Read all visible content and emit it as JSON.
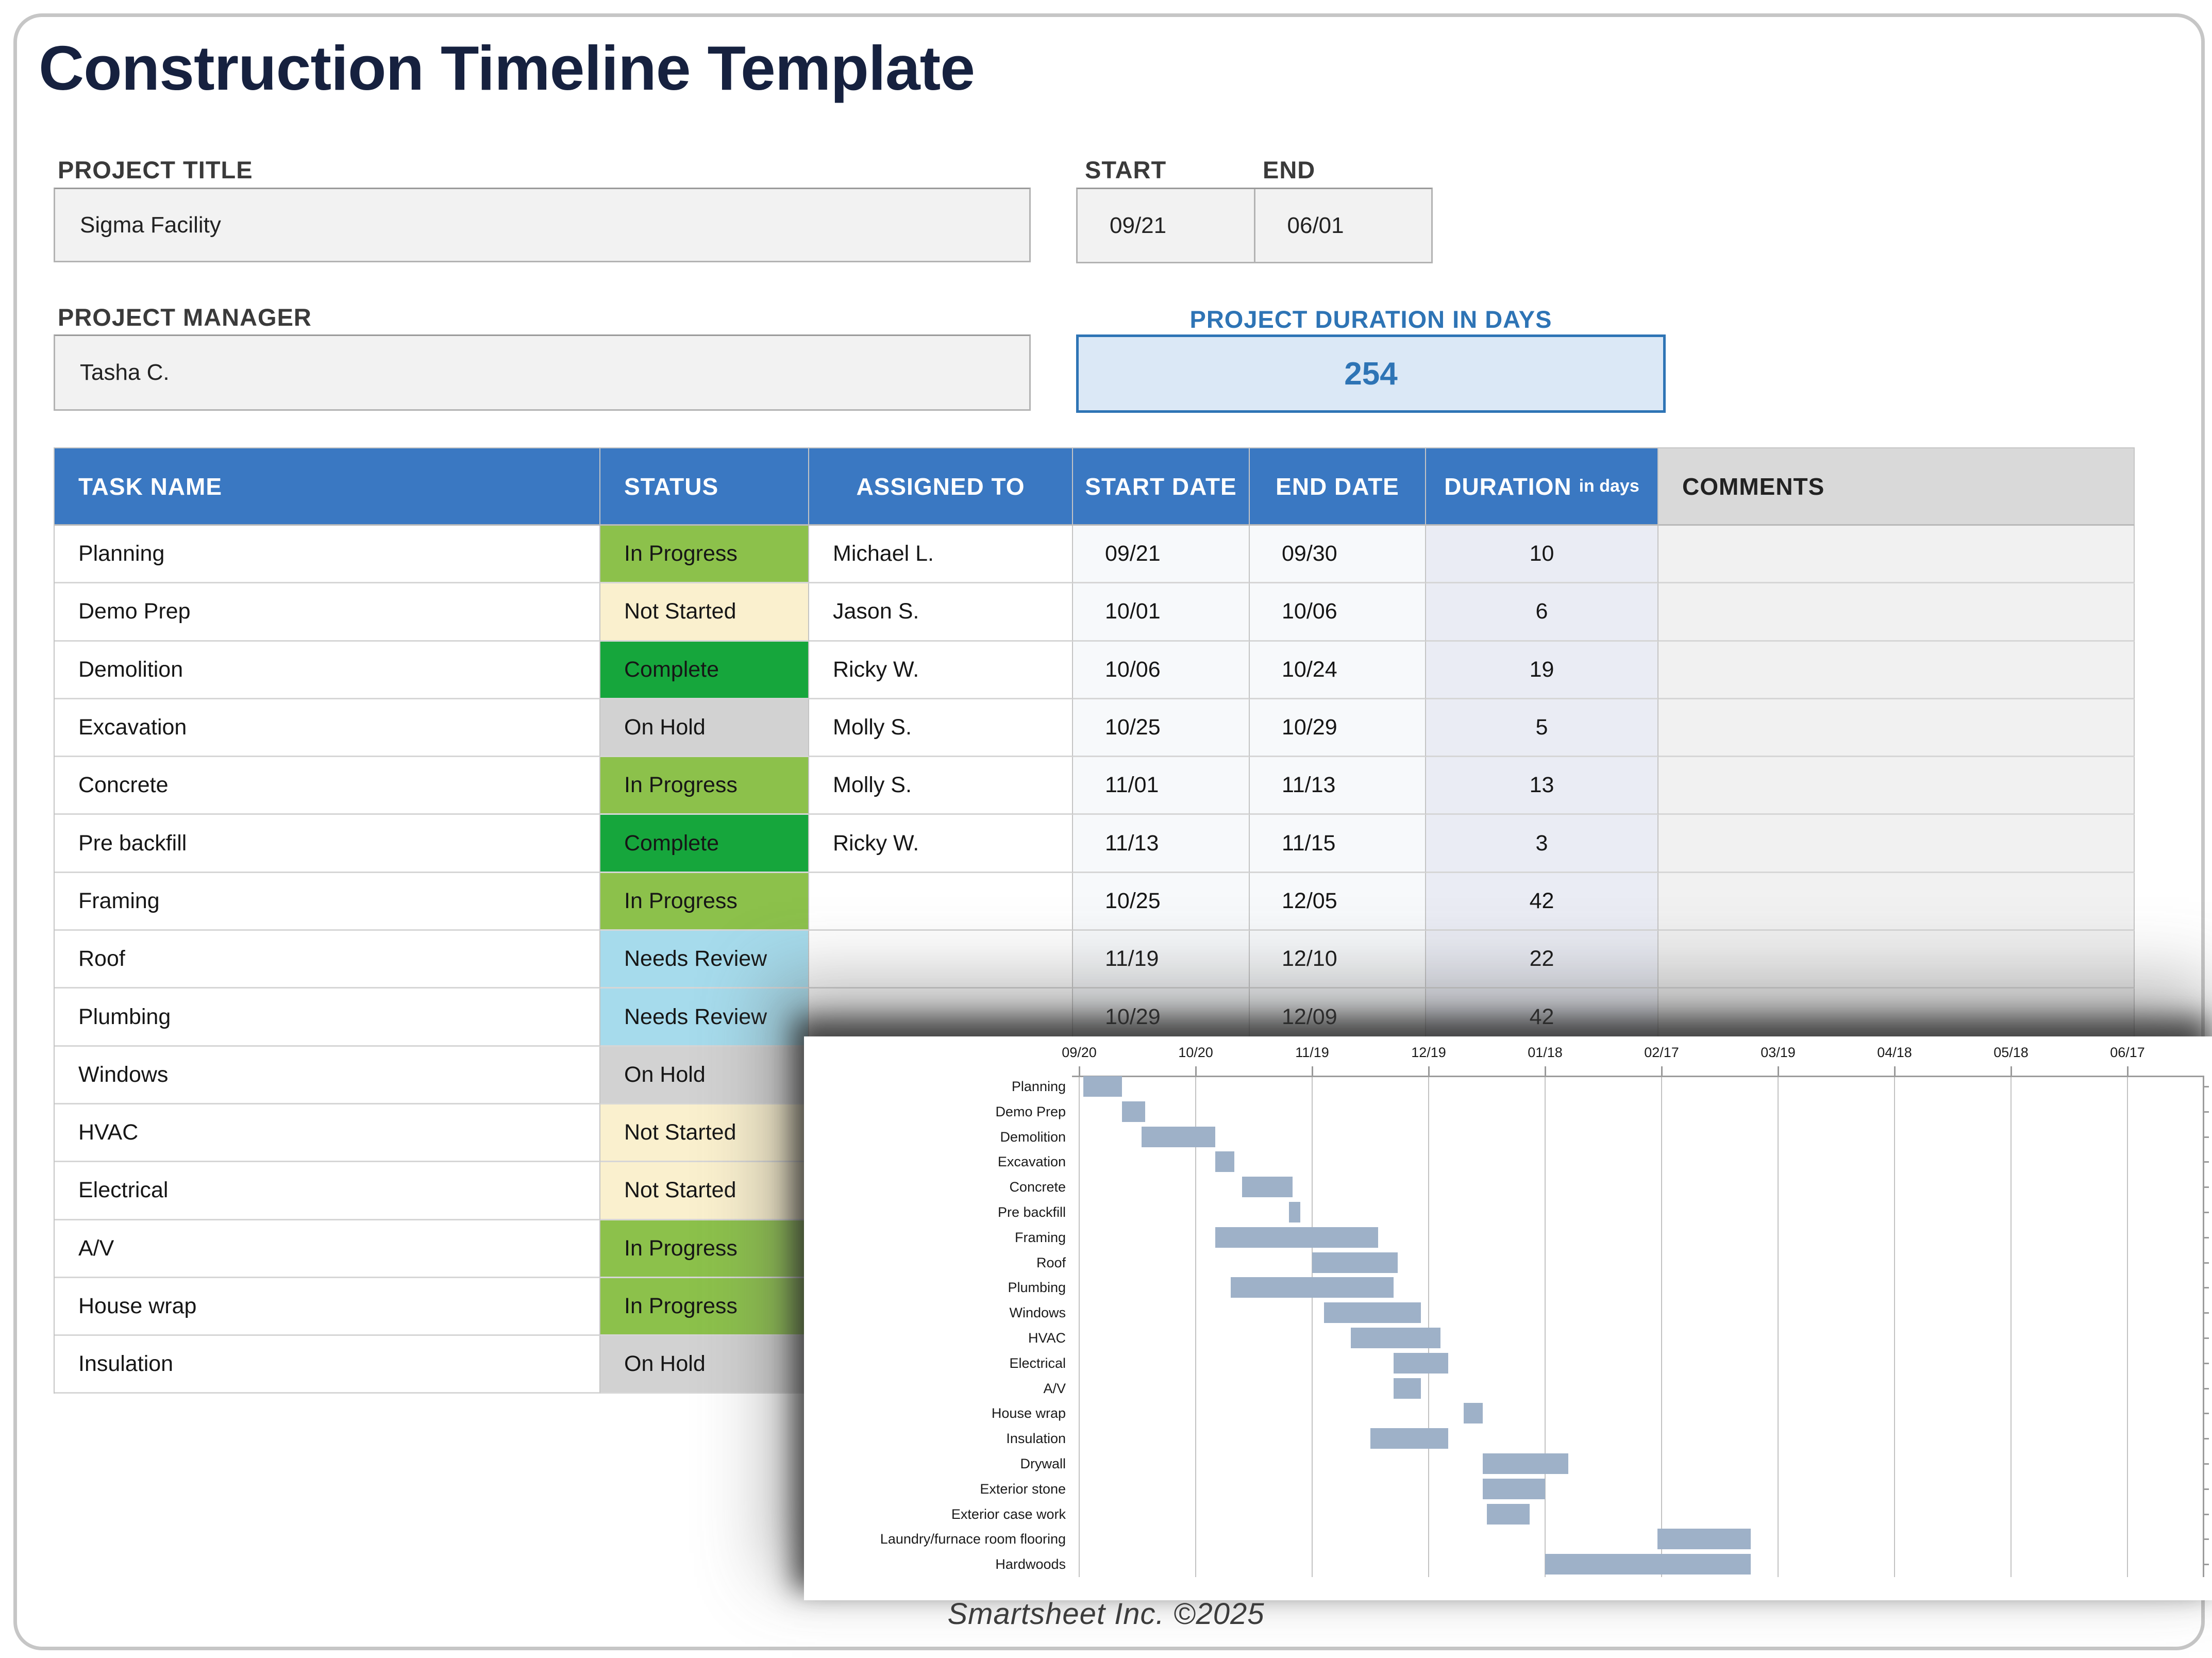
{
  "header": {
    "title": "Construction Timeline Template"
  },
  "project": {
    "title_label": "PROJECT TITLE",
    "title_value": "Sigma Facility",
    "manager_label": "PROJECT MANAGER",
    "manager_value": "Tasha C.",
    "start_label": "START",
    "start_value": "09/21",
    "end_label": "END",
    "end_value": "06/01",
    "duration_label": "PROJECT DURATION IN DAYS",
    "duration_value": "254"
  },
  "table": {
    "headers": {
      "task_name": "TASK NAME",
      "status": "STATUS",
      "assigned_to": "ASSIGNED TO",
      "start_date": "START DATE",
      "end_date": "END DATE",
      "duration": "DURATION",
      "duration_unit": "in days",
      "comments": "COMMENTS"
    },
    "rows": [
      {
        "task": "Planning",
        "status": "In Progress",
        "assigned": "Michael L.",
        "start": "09/21",
        "end": "09/30",
        "duration": "10",
        "comments": ""
      },
      {
        "task": "Demo Prep",
        "status": "Not Started",
        "assigned": "Jason S.",
        "start": "10/01",
        "end": "10/06",
        "duration": "6",
        "comments": ""
      },
      {
        "task": "Demolition",
        "status": "Complete",
        "assigned": "Ricky W.",
        "start": "10/06",
        "end": "10/24",
        "duration": "19",
        "comments": ""
      },
      {
        "task": "Excavation",
        "status": "On Hold",
        "assigned": "Molly S.",
        "start": "10/25",
        "end": "10/29",
        "duration": "5",
        "comments": ""
      },
      {
        "task": "Concrete",
        "status": "In Progress",
        "assigned": "Molly S.",
        "start": "11/01",
        "end": "11/13",
        "duration": "13",
        "comments": ""
      },
      {
        "task": "Pre backfill",
        "status": "Complete",
        "assigned": "Ricky W.",
        "start": "11/13",
        "end": "11/15",
        "duration": "3",
        "comments": ""
      },
      {
        "task": "Framing",
        "status": "In Progress",
        "assigned": "",
        "start": "10/25",
        "end": "12/05",
        "duration": "42",
        "comments": ""
      },
      {
        "task": "Roof",
        "status": "Needs Review",
        "assigned": "",
        "start": "11/19",
        "end": "12/10",
        "duration": "22",
        "comments": ""
      },
      {
        "task": "Plumbing",
        "status": "Needs Review",
        "assigned": "",
        "start": "10/29",
        "end": "12/09",
        "duration": "42",
        "comments": ""
      },
      {
        "task": "Windows",
        "status": "On Hold",
        "assigned": "",
        "start": "",
        "end": "",
        "duration": "",
        "comments": ""
      },
      {
        "task": "HVAC",
        "status": "Not Started",
        "assigned": "",
        "start": "",
        "end": "",
        "duration": "",
        "comments": ""
      },
      {
        "task": "Electrical",
        "status": "Not Started",
        "assigned": "",
        "start": "",
        "end": "",
        "duration": "",
        "comments": ""
      },
      {
        "task": "A/V",
        "status": "In Progress",
        "assigned": "",
        "start": "",
        "end": "",
        "duration": "",
        "comments": ""
      },
      {
        "task": "House wrap",
        "status": "In Progress",
        "assigned": "",
        "start": "",
        "end": "",
        "duration": "",
        "comments": ""
      },
      {
        "task": "Insulation",
        "status": "On Hold",
        "assigned": "",
        "start": "",
        "end": "",
        "duration": "",
        "comments": ""
      }
    ]
  },
  "status_colors": {
    "In Progress": "#8cc14b",
    "Not Started": "#faf0ce",
    "Complete": "#16a63c",
    "On Hold": "#d2d2d2",
    "Needs Review": "#a6dbec"
  },
  "colors": {
    "header_blue": "#3a78c2",
    "accent_blue": "#2e74b5",
    "title_navy": "#16213f",
    "gantt_bar": "#9eb1c8"
  },
  "chart_data": {
    "type": "bar",
    "subtype": "gantt",
    "title": "",
    "xlabel": "",
    "ylabel": "",
    "x_ticks": [
      "09/20",
      "10/20",
      "11/19",
      "12/19",
      "01/18",
      "02/17",
      "03/19",
      "04/18",
      "05/18",
      "06/17"
    ],
    "days_per_tick": 30,
    "axis_range_days": [
      0,
      289
    ],
    "grid": true,
    "legend": "none",
    "bar_color": "#9eb1c8",
    "tasks": [
      {
        "label": "Planning",
        "start": "09/21",
        "end": "09/30",
        "start_day": 1,
        "duration_days": 10
      },
      {
        "label": "Demo Prep",
        "start": "10/01",
        "end": "10/06",
        "start_day": 11,
        "duration_days": 6
      },
      {
        "label": "Demolition",
        "start": "10/06",
        "end": "10/24",
        "start_day": 16,
        "duration_days": 19
      },
      {
        "label": "Excavation",
        "start": "10/25",
        "end": "10/29",
        "start_day": 35,
        "duration_days": 5
      },
      {
        "label": "Concrete",
        "start": "11/01",
        "end": "11/13",
        "start_day": 42,
        "duration_days": 13
      },
      {
        "label": "Pre backfill",
        "start": "11/13",
        "end": "11/15",
        "start_day": 54,
        "duration_days": 3
      },
      {
        "label": "Framing",
        "start": "10/25",
        "end": "12/05",
        "start_day": 35,
        "duration_days": 42
      },
      {
        "label": "Roof",
        "start": "11/19",
        "end": "12/10",
        "start_day": 60,
        "duration_days": 22
      },
      {
        "label": "Plumbing",
        "start": "10/29",
        "end": "12/09",
        "start_day": 39,
        "duration_days": 42
      },
      {
        "label": "Windows",
        "start": "11/22",
        "end": "12/16",
        "start_day": 63,
        "duration_days": 25
      },
      {
        "label": "HVAC",
        "start": "11/29",
        "end": "12/21",
        "start_day": 70,
        "duration_days": 23
      },
      {
        "label": "Electrical",
        "start": "12/10",
        "end": "12/23",
        "start_day": 81,
        "duration_days": 14
      },
      {
        "label": "A/V",
        "start": "12/10",
        "end": "12/16",
        "start_day": 81,
        "duration_days": 7
      },
      {
        "label": "House wrap",
        "start": "12/28",
        "end": "01/01",
        "start_day": 99,
        "duration_days": 5
      },
      {
        "label": "Insulation",
        "start": "12/04",
        "end": "12/23",
        "start_day": 75,
        "duration_days": 20
      },
      {
        "label": "Drywall",
        "start": "01/02",
        "end": "01/23",
        "start_day": 104,
        "duration_days": 22
      },
      {
        "label": "Exterior stone",
        "start": "01/02",
        "end": "01/17",
        "start_day": 104,
        "duration_days": 16
      },
      {
        "label": "Exterior case work",
        "start": "01/03",
        "end": "01/13",
        "start_day": 105,
        "duration_days": 11
      },
      {
        "label": "Laundry/furnace room flooring",
        "start": "02/16",
        "end": "03/11",
        "start_day": 149,
        "duration_days": 24
      },
      {
        "label": "Hardwoods",
        "start": "01/18",
        "end": "03/11",
        "start_day": 120,
        "duration_days": 53
      }
    ]
  },
  "footer": {
    "text": "Smartsheet Inc. ©2025"
  }
}
